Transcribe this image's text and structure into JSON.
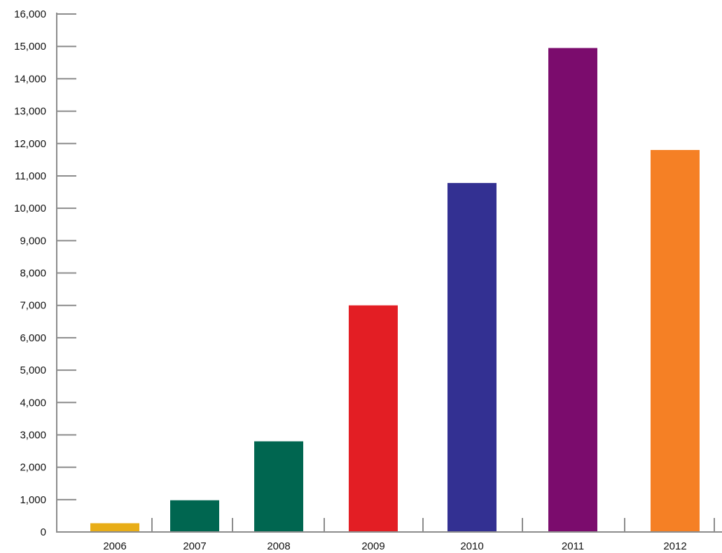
{
  "chart_data": {
    "type": "bar",
    "title": "",
    "xlabel": "",
    "ylabel": "",
    "categories": [
      "2006",
      "2007",
      "2008",
      "2009",
      "2010",
      "2011",
      "2012"
    ],
    "values": [
      270,
      980,
      2800,
      7000,
      10780,
      14950,
      11800
    ],
    "bar_colors": [
      "#e8ad17",
      "#006650",
      "#006650",
      "#e31e24",
      "#333092",
      "#7b0c6d",
      "#f58025"
    ],
    "ylim": [
      0,
      16000
    ],
    "yticks": [
      0,
      1000,
      2000,
      3000,
      4000,
      5000,
      6000,
      7000,
      8000,
      9000,
      10000,
      11000,
      12000,
      13000,
      14000,
      15000,
      16000
    ],
    "ytick_labels": [
      "0",
      "1,000",
      "2,000",
      "3,000",
      "4,000",
      "5,000",
      "6,000",
      "7,000",
      "8,000",
      "9,000",
      "10,000",
      "11,000",
      "12,000",
      "13,000",
      "14,000",
      "15,000",
      "16,000"
    ],
    "grid": false,
    "axis_color": "#8c8c8c"
  }
}
